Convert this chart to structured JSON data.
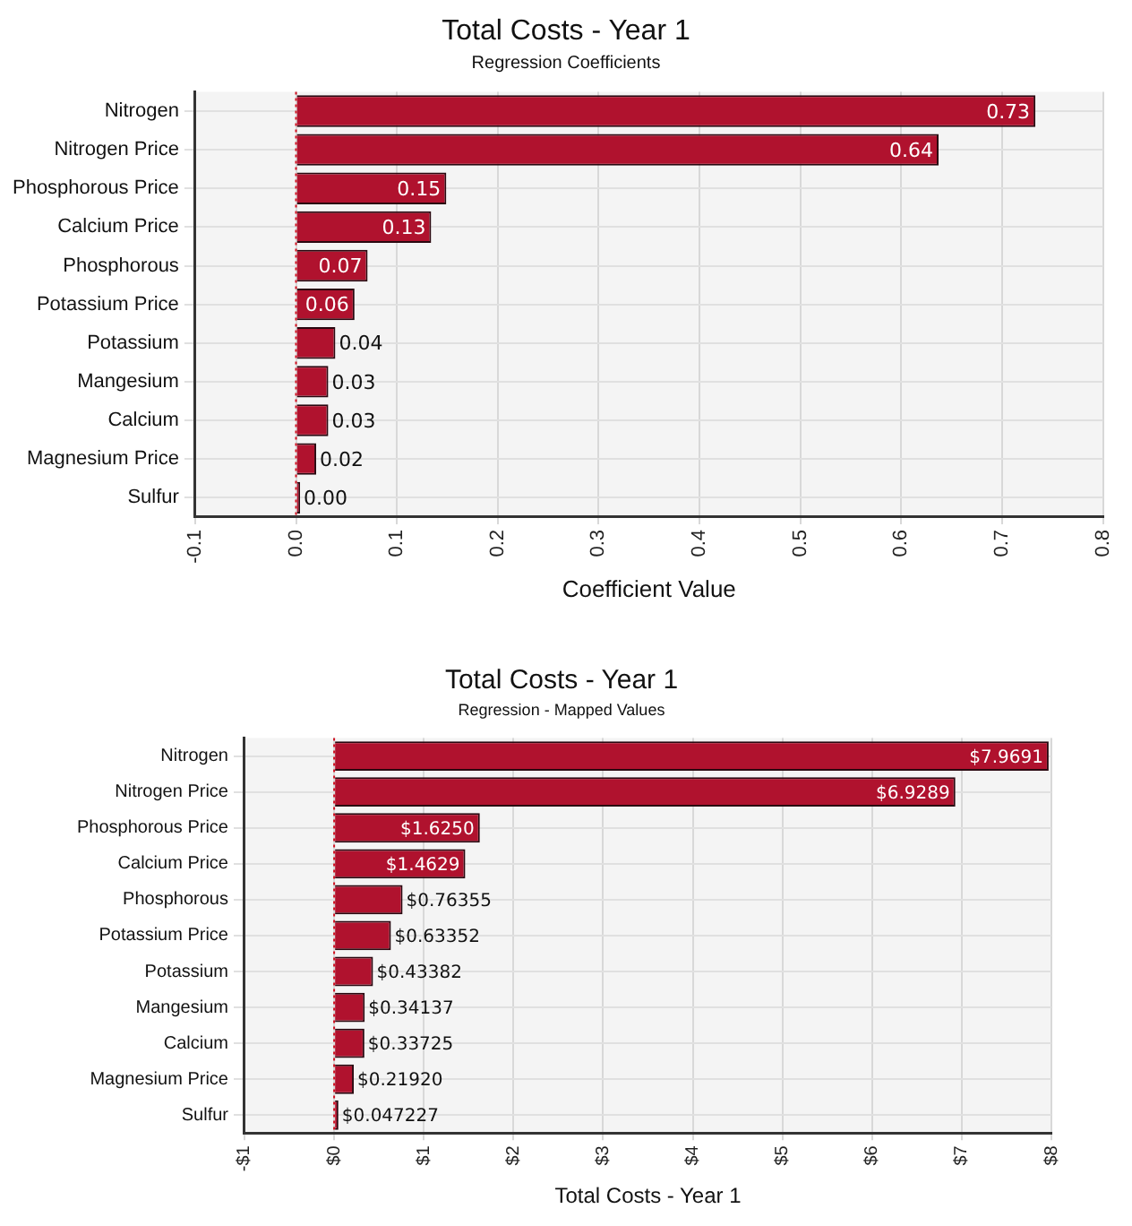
{
  "chart_data": [
    {
      "type": "bar",
      "orientation": "horizontal",
      "title": "Total Costs - Year 1",
      "subtitle": "Regression Coefficients",
      "xlabel": "Coefficient Value",
      "categories": [
        "Nitrogen",
        "Nitrogen Price",
        "Phosphorous Price",
        "Calcium Price",
        "Phosphorous",
        "Potassium Price",
        "Potassium",
        "Mangesium",
        "Calcium",
        "Magnesium Price",
        "Sulfur"
      ],
      "values": [
        0.733,
        0.637,
        0.149,
        0.134,
        0.071,
        0.058,
        0.039,
        0.032,
        0.032,
        0.02,
        0.004
      ],
      "value_labels": [
        "0.73",
        "0.64",
        "0.15",
        "0.13",
        "0.07",
        "0.06",
        "0.04",
        "0.03",
        "0.03",
        "0.02",
        "0.00"
      ],
      "color": "#b0122e",
      "xlim": [
        -0.1,
        0.8
      ],
      "xticks": [
        {
          "value": -0.1,
          "label": "-0.1"
        },
        {
          "value": 0,
          "label": "0.0"
        },
        {
          "value": 0.1,
          "label": "0.1"
        },
        {
          "value": 0.2,
          "label": "0.2"
        },
        {
          "value": 0.3,
          "label": "0.3"
        },
        {
          "value": 0.4,
          "label": "0.4"
        },
        {
          "value": 0.5,
          "label": "0.5"
        },
        {
          "value": 0.6,
          "label": "0.6"
        },
        {
          "value": 0.7,
          "label": "0.7"
        },
        {
          "value": 0.8,
          "label": "0.8"
        }
      ],
      "ref_lines": [
        {
          "axis": "x",
          "value": 0,
          "color": "#d01020",
          "line_style": "dotted"
        }
      ],
      "grid": true
    },
    {
      "type": "bar",
      "orientation": "horizontal",
      "title": "Total Costs - Year 1",
      "subtitle": "Regression - Mapped Values",
      "xlabel": "Total Costs - Year 1",
      "categories": [
        "Nitrogen",
        "Nitrogen Price",
        "Phosphorous Price",
        "Calcium Price",
        "Phosphorous",
        "Potassium Price",
        "Potassium",
        "Mangesium",
        "Calcium",
        "Magnesium Price",
        "Sulfur"
      ],
      "values": [
        7.9691,
        6.9289,
        1.625,
        1.4629,
        0.76355,
        0.63352,
        0.43382,
        0.34137,
        0.33725,
        0.2192,
        0.047227
      ],
      "value_labels": [
        "$7.9691",
        "$6.9289",
        "$1.6250",
        "$1.4629",
        "$0.76355",
        "$0.63352",
        "$0.43382",
        "$0.34137",
        "$0.33725",
        "$0.21920",
        "$0.047227"
      ],
      "color": "#b0122e",
      "xlim": [
        -1,
        8
      ],
      "xticks": [
        {
          "value": -1,
          "label": "-$1"
        },
        {
          "value": 0,
          "label": "$0"
        },
        {
          "value": 1,
          "label": "$1"
        },
        {
          "value": 2,
          "label": "$2"
        },
        {
          "value": 3,
          "label": "$3"
        },
        {
          "value": 4,
          "label": "$4"
        },
        {
          "value": 5,
          "label": "$5"
        },
        {
          "value": 6,
          "label": "$6"
        },
        {
          "value": 7,
          "label": "$7"
        },
        {
          "value": 8,
          "label": "$8"
        }
      ],
      "ref_lines": [
        {
          "axis": "x",
          "value": 0,
          "color": "#d01020",
          "line_style": "dotted"
        }
      ],
      "grid": true
    }
  ]
}
